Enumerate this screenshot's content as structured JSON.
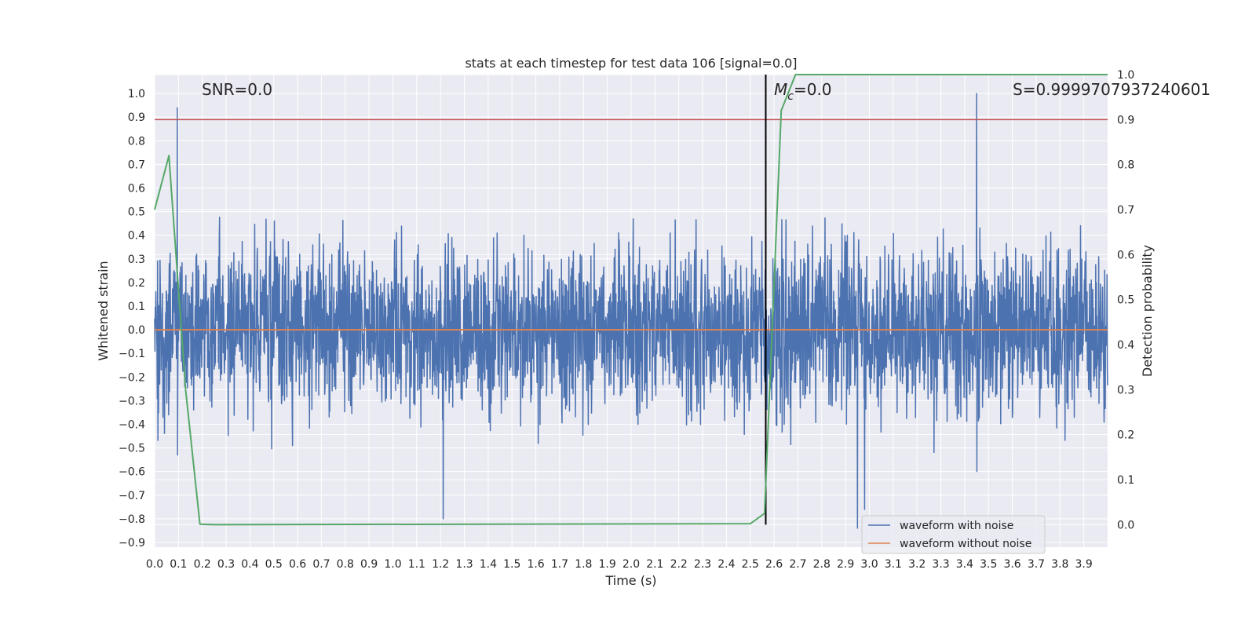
{
  "chart_data": {
    "type": "line",
    "title": "stats at each timestep for test data 106 [signal=0.0]",
    "xlabel": "Time (s)",
    "ylabel": "Whitened strain",
    "ylabel_right": "Detection probability",
    "xlim": [
      0.0,
      4.0
    ],
    "ylim": [
      -0.92,
      1.08
    ],
    "ylim_right": [
      -0.05,
      1.0
    ],
    "grid": true,
    "x_ticks": [
      "0.0",
      "0.1",
      "0.2",
      "0.3",
      "0.4",
      "0.5",
      "0.6",
      "0.7",
      "0.8",
      "0.9",
      "1.0",
      "1.1",
      "1.2",
      "1.3",
      "1.4",
      "1.5",
      "1.6",
      "1.7",
      "1.8",
      "1.9",
      "2.0",
      "2.1",
      "2.2",
      "2.3",
      "2.4",
      "2.5",
      "2.6",
      "2.7",
      "2.8",
      "2.9",
      "3.0",
      "3.1",
      "3.2",
      "3.3",
      "3.4",
      "3.5",
      "3.6",
      "3.7",
      "3.8",
      "3.9"
    ],
    "y_ticks": [
      "1.0",
      "0.9",
      "0.8",
      "0.7",
      "0.6",
      "0.5",
      "0.4",
      "0.3",
      "0.2",
      "0.1",
      "0.0",
      "−0.1",
      "−0.2",
      "−0.3",
      "−0.4",
      "−0.5",
      "−0.6",
      "−0.7",
      "−0.8",
      "−0.9"
    ],
    "y_ticks_right": [
      "1.0",
      "0.9",
      "0.8",
      "0.7",
      "0.6",
      "0.5",
      "0.4",
      "0.3",
      "0.2",
      "0.1",
      "0.0"
    ],
    "annotations": {
      "snr": "SNR=0.0",
      "mc_symbol": "M",
      "mc_sub": "c",
      "mc_value": "=0.0",
      "s": "S=0.9999707937240601"
    },
    "legend": {
      "position": "lower-right",
      "entries": [
        "waveform with noise",
        "waveform without noise"
      ]
    },
    "series": [
      {
        "name": "waveform with noise",
        "axis": "left",
        "color": "#4c72b0",
        "style": "dense-noise",
        "x_range": [
          0.0,
          4.0
        ],
        "typical_amplitude": 0.45,
        "peaks": [
          {
            "x": 0.095,
            "y": 0.94
          },
          {
            "x": 0.095,
            "y": -0.53
          },
          {
            "x": 1.21,
            "y": -0.8
          },
          {
            "x": 2.95,
            "y": -0.84
          },
          {
            "x": 2.98,
            "y": -0.76
          },
          {
            "x": 3.45,
            "y": 1.0
          },
          {
            "x": 3.45,
            "y": -0.6
          }
        ]
      },
      {
        "name": "waveform without noise",
        "axis": "left",
        "color": "#dd8452",
        "x": [
          0.0,
          4.0
        ],
        "y": [
          0.0,
          0.0
        ]
      },
      {
        "name": "detection probability",
        "axis": "right",
        "color": "#55a868",
        "x": [
          0.0,
          0.06,
          0.13,
          0.19,
          0.25,
          2.5,
          2.56,
          2.63,
          2.69,
          4.0
        ],
        "y": [
          0.7,
          0.82,
          0.3,
          0.001,
          0.0,
          0.002,
          0.025,
          0.92,
          1.0,
          1.0
        ]
      }
    ],
    "threshold_line": {
      "axis": "right",
      "y": 0.9,
      "color": "#c44e52"
    },
    "event_marker": {
      "x": 2.565,
      "y_range_right": [
        0.0,
        1.0
      ],
      "color": "#000000"
    },
    "colors": {
      "background": "#eaeaf2",
      "grid": "#ffffff"
    }
  }
}
